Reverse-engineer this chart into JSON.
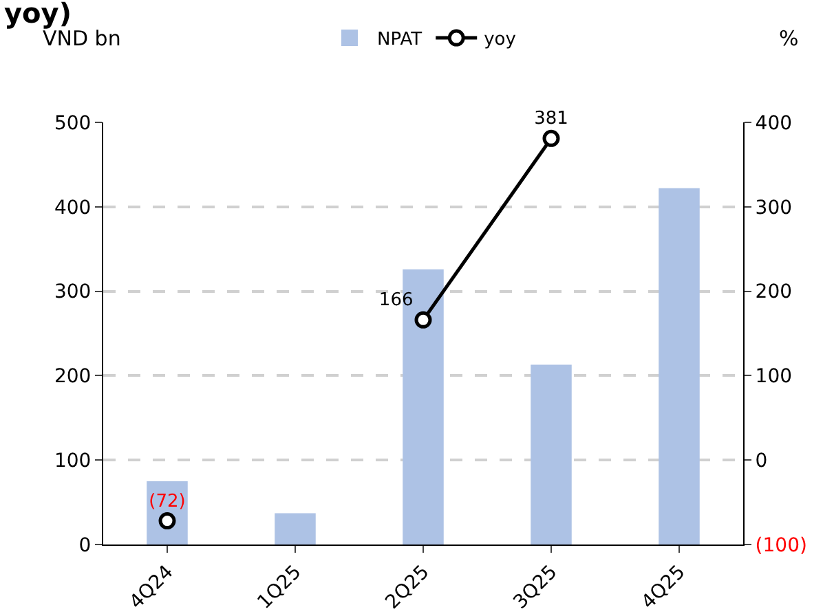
{
  "chart_data": {
    "type": "bar",
    "title": "yoy)",
    "ylabel": "VND bn",
    "y2label": "%",
    "categories": [
      "4Q24",
      "1Q25",
      "2Q25",
      "3Q25",
      "4Q25"
    ],
    "series": [
      {
        "name": "NPAT",
        "color": "#adc2e5",
        "values": [
          75,
          37,
          326,
          213,
          422
        ]
      },
      {
        "name": "yoy",
        "type": "line",
        "axis": "y2",
        "color": "#000000",
        "marker": "circle",
        "values": [
          -72,
          null,
          166,
          381,
          null
        ],
        "value_labels": [
          "(72)",
          null,
          "166",
          "381",
          null
        ]
      }
    ],
    "ylim": [
      0,
      500
    ],
    "yticks": [
      0,
      100,
      200,
      300,
      400,
      500
    ],
    "y2lim": [
      -100,
      400
    ],
    "y2ticks": [
      {
        "value": -100,
        "label": "(100)"
      },
      0,
      100,
      200,
      300,
      400
    ],
    "grid": "y",
    "legend": "top"
  }
}
